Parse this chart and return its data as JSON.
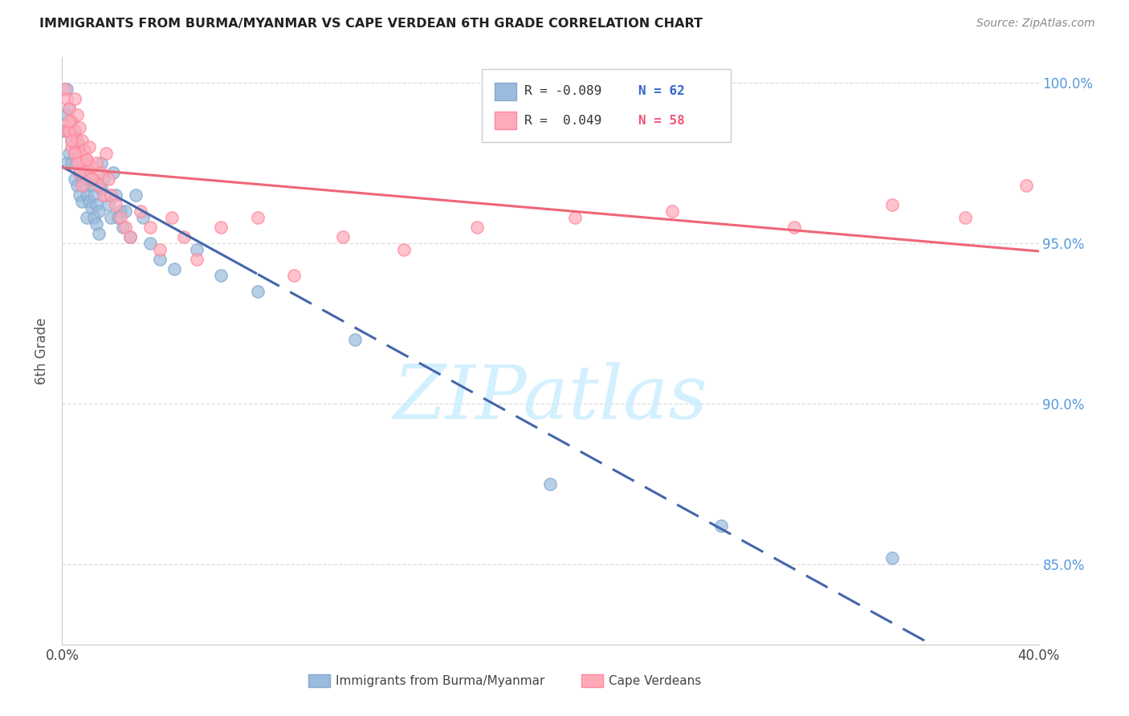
{
  "title": "IMMIGRANTS FROM BURMA/MYANMAR VS CAPE VERDEAN 6TH GRADE CORRELATION CHART",
  "source": "Source: ZipAtlas.com",
  "ylabel": "6th Grade",
  "xlim": [
    0.0,
    0.4
  ],
  "ylim": [
    0.825,
    1.008
  ],
  "blue_color": "#99BBDD",
  "pink_color": "#FFAABB",
  "blue_edge_color": "#88AACC",
  "pink_edge_color": "#FF8899",
  "blue_line_color": "#4466AA",
  "pink_line_color": "#EE6677",
  "watermark_text": "ZIPatlas",
  "watermark_color": "#CCEEFF",
  "legend_r1": "R = -0.089",
  "legend_n1": "N = 62",
  "legend_r2": "R =  0.049",
  "legend_n2": "N = 58",
  "legend_r_color": "#333333",
  "legend_n1_color": "#3366CC",
  "legend_n2_color": "#EE5577",
  "right_tick_color": "#5599DD",
  "grid_color": "#DDDDDD",
  "blue_x": [
    0.001,
    0.002,
    0.002,
    0.002,
    0.003,
    0.003,
    0.003,
    0.004,
    0.004,
    0.004,
    0.005,
    0.005,
    0.005,
    0.006,
    0.006,
    0.006,
    0.007,
    0.007,
    0.007,
    0.008,
    0.008,
    0.008,
    0.009,
    0.009,
    0.01,
    0.01,
    0.01,
    0.011,
    0.011,
    0.012,
    0.012,
    0.013,
    0.013,
    0.014,
    0.014,
    0.015,
    0.015,
    0.016,
    0.016,
    0.017,
    0.018,
    0.019,
    0.02,
    0.021,
    0.022,
    0.023,
    0.024,
    0.025,
    0.026,
    0.028,
    0.03,
    0.033,
    0.036,
    0.04,
    0.046,
    0.055,
    0.065,
    0.08,
    0.12,
    0.2,
    0.27,
    0.34
  ],
  "blue_y": [
    0.985,
    0.998,
    0.99,
    0.975,
    0.992,
    0.985,
    0.978,
    0.988,
    0.982,
    0.975,
    0.985,
    0.978,
    0.97,
    0.982,
    0.975,
    0.968,
    0.98,
    0.972,
    0.965,
    0.977,
    0.97,
    0.963,
    0.975,
    0.968,
    0.972,
    0.965,
    0.958,
    0.97,
    0.963,
    0.968,
    0.961,
    0.965,
    0.958,
    0.962,
    0.956,
    0.96,
    0.953,
    0.975,
    0.967,
    0.97,
    0.965,
    0.962,
    0.958,
    0.972,
    0.965,
    0.958,
    0.96,
    0.955,
    0.96,
    0.952,
    0.965,
    0.958,
    0.95,
    0.945,
    0.942,
    0.948,
    0.94,
    0.935,
    0.92,
    0.875,
    0.862,
    0.852
  ],
  "pink_x": [
    0.001,
    0.002,
    0.002,
    0.003,
    0.003,
    0.004,
    0.004,
    0.005,
    0.005,
    0.006,
    0.006,
    0.007,
    0.007,
    0.008,
    0.008,
    0.009,
    0.009,
    0.01,
    0.011,
    0.012,
    0.013,
    0.014,
    0.015,
    0.016,
    0.017,
    0.018,
    0.019,
    0.02,
    0.022,
    0.024,
    0.026,
    0.028,
    0.032,
    0.036,
    0.04,
    0.045,
    0.05,
    0.055,
    0.065,
    0.08,
    0.095,
    0.115,
    0.14,
    0.17,
    0.21,
    0.25,
    0.3,
    0.34,
    0.37,
    0.395,
    0.003,
    0.004,
    0.005,
    0.006,
    0.007,
    0.008,
    0.01,
    0.012
  ],
  "pink_y": [
    0.998,
    0.995,
    0.985,
    0.992,
    0.985,
    0.988,
    0.98,
    0.995,
    0.985,
    0.99,
    0.982,
    0.986,
    0.978,
    0.982,
    0.975,
    0.979,
    0.972,
    0.976,
    0.98,
    0.974,
    0.97,
    0.975,
    0.968,
    0.972,
    0.965,
    0.978,
    0.97,
    0.965,
    0.962,
    0.958,
    0.955,
    0.952,
    0.96,
    0.955,
    0.948,
    0.958,
    0.952,
    0.945,
    0.955,
    0.958,
    0.94,
    0.952,
    0.948,
    0.955,
    0.958,
    0.96,
    0.955,
    0.962,
    0.958,
    0.968,
    0.988,
    0.982,
    0.978,
    0.975,
    0.972,
    0.968,
    0.976,
    0.97
  ]
}
